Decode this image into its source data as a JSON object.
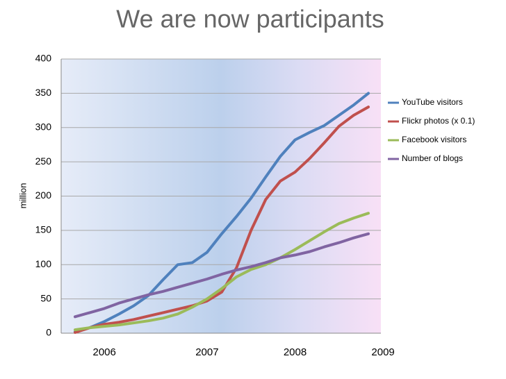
{
  "chart_data": {
    "type": "line",
    "title": "We are now participants",
    "y_label": "million",
    "categories": [
      null,
      null,
      "2006",
      null,
      null,
      null,
      null,
      null,
      null,
      "2007",
      null,
      null,
      null,
      null,
      null,
      "2008",
      null,
      null,
      null,
      null,
      null,
      "2009"
    ],
    "series": [
      {
        "name": "YouTube visitors",
        "color": "#4f81bd",
        "values": [
          2,
          8,
          17,
          28,
          40,
          55,
          78,
          100,
          103,
          118,
          145,
          170,
          197,
          228,
          258,
          282,
          293,
          303,
          318,
          333,
          350,
          null
        ]
      },
      {
        "name": "Flickr photos (x 0.1)",
        "color": "#c0504d",
        "values": [
          1,
          8,
          13,
          16,
          20,
          25,
          30,
          35,
          40,
          47,
          60,
          95,
          150,
          195,
          222,
          235,
          255,
          278,
          302,
          318,
          330,
          null
        ]
      },
      {
        "name": "Facebook visitors",
        "color": "#9bbb59",
        "values": [
          5,
          8,
          10,
          12,
          15,
          18,
          22,
          28,
          38,
          50,
          65,
          82,
          93,
          100,
          110,
          122,
          135,
          148,
          160,
          168,
          175,
          null
        ]
      },
      {
        "name": "Number of blogs",
        "color": "#8064a2",
        "values": [
          24,
          30,
          36,
          44,
          50,
          56,
          61,
          67,
          73,
          79,
          86,
          92,
          97,
          103,
          110,
          114,
          119,
          126,
          132,
          139,
          145,
          null
        ]
      }
    ],
    "ylim": [
      0,
      400
    ],
    "yticks": [
      0,
      50,
      100,
      150,
      200,
      250,
      300,
      350,
      400
    ],
    "grid": true,
    "legend": "right"
  }
}
